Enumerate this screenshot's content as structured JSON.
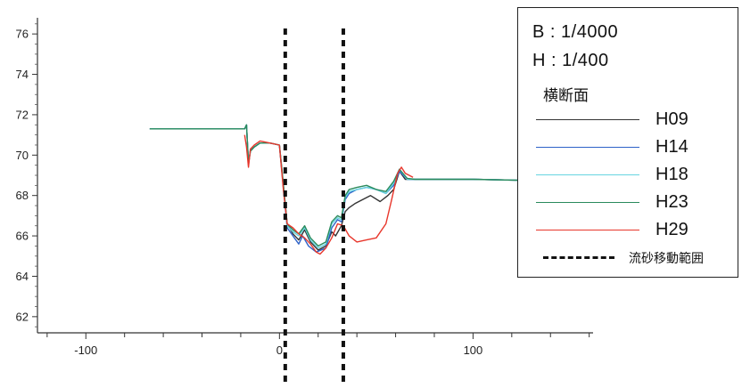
{
  "chart_data": {
    "type": "line",
    "title": "",
    "xlabel": "",
    "ylabel": "",
    "xlim": [
      -125,
      162
    ],
    "ylim": [
      61.2,
      76.8
    ],
    "x_ticks": [
      -100,
      0,
      100
    ],
    "y_ticks": [
      62,
      64,
      66,
      68,
      70,
      72,
      74,
      76
    ],
    "x_tick_labels": [
      "-100",
      "0",
      "100"
    ],
    "y_tick_labels": [
      "62",
      "64",
      "66",
      "68",
      "70",
      "72",
      "74",
      "76"
    ],
    "grid": false,
    "legend_position": "top-right",
    "legend": {
      "scale_lines": [
        "B : 1/4000",
        "H : 1/400"
      ],
      "subtitle": "横断面",
      "dashed_label": "流砂移動範囲"
    },
    "sediment_range": [
      3,
      33
    ],
    "series": [
      {
        "name": "H09",
        "color": "#333333",
        "points": [
          [
            -67,
            71.3
          ],
          [
            -18,
            71.3
          ],
          [
            -17,
            71.5
          ],
          [
            -16,
            69.6
          ],
          [
            -15,
            70.2
          ],
          [
            -13,
            70.4
          ],
          [
            -10,
            70.6
          ],
          [
            -5,
            70.6
          ],
          [
            0,
            70.5
          ],
          [
            2,
            68.5
          ],
          [
            4,
            66.6
          ],
          [
            7,
            66.1
          ],
          [
            10,
            65.8
          ],
          [
            13,
            66.3
          ],
          [
            16,
            65.7
          ],
          [
            20,
            65.3
          ],
          [
            24,
            65.5
          ],
          [
            27,
            66.2
          ],
          [
            29,
            66.0
          ],
          [
            32,
            66.5
          ],
          [
            34,
            67.2
          ],
          [
            36,
            67.4
          ],
          [
            39,
            67.6
          ],
          [
            43,
            67.8
          ],
          [
            47,
            68.0
          ],
          [
            52,
            67.7
          ],
          [
            56,
            68.0
          ],
          [
            59,
            68.3
          ],
          [
            62,
            69.2
          ],
          [
            65,
            68.8
          ],
          [
            70,
            68.8
          ],
          [
            100,
            68.8
          ],
          [
            127,
            68.75
          ],
          [
            158,
            68.75
          ]
        ]
      },
      {
        "name": "H14",
        "color": "#2e62c8",
        "points": [
          [
            -67,
            71.3
          ],
          [
            -18,
            71.3
          ],
          [
            -17,
            71.5
          ],
          [
            -16,
            69.5
          ],
          [
            -15,
            70.3
          ],
          [
            -13,
            70.4
          ],
          [
            -10,
            70.6
          ],
          [
            -5,
            70.6
          ],
          [
            0,
            70.5
          ],
          [
            2,
            68.4
          ],
          [
            4,
            66.4
          ],
          [
            7,
            66.0
          ],
          [
            10,
            65.6
          ],
          [
            12,
            66.0
          ],
          [
            15,
            65.5
          ],
          [
            19,
            65.2
          ],
          [
            24,
            65.4
          ],
          [
            27,
            66.4
          ],
          [
            30,
            66.8
          ],
          [
            32,
            66.7
          ],
          [
            34,
            67.8
          ],
          [
            36,
            68.1
          ],
          [
            40,
            68.3
          ],
          [
            45,
            68.4
          ],
          [
            50,
            68.3
          ],
          [
            55,
            68.1
          ],
          [
            59,
            68.5
          ],
          [
            62,
            69.2
          ],
          [
            66,
            68.8
          ],
          [
            70,
            68.8
          ],
          [
            100,
            68.8
          ],
          [
            127,
            68.75
          ],
          [
            158,
            68.75
          ]
        ]
      },
      {
        "name": "H18",
        "color": "#66d4e0",
        "points": [
          [
            -67,
            71.3
          ],
          [
            -18,
            71.3
          ],
          [
            -17,
            71.5
          ],
          [
            -16,
            69.6
          ],
          [
            -15,
            70.2
          ],
          [
            -13,
            70.4
          ],
          [
            -10,
            70.6
          ],
          [
            -5,
            70.6
          ],
          [
            0,
            70.5
          ],
          [
            2,
            68.5
          ],
          [
            4,
            66.5
          ],
          [
            7,
            66.2
          ],
          [
            10,
            66.0
          ],
          [
            13,
            66.4
          ],
          [
            16,
            65.8
          ],
          [
            20,
            65.4
          ],
          [
            24,
            65.6
          ],
          [
            27,
            66.6
          ],
          [
            30,
            66.9
          ],
          [
            32,
            66.8
          ],
          [
            34,
            67.9
          ],
          [
            36,
            68.2
          ],
          [
            40,
            68.3
          ],
          [
            45,
            68.4
          ],
          [
            50,
            68.3
          ],
          [
            55,
            68.1
          ],
          [
            59,
            68.6
          ],
          [
            62,
            69.3
          ],
          [
            66,
            68.8
          ],
          [
            70,
            68.8
          ],
          [
            100,
            68.8
          ],
          [
            127,
            68.75
          ],
          [
            158,
            68.75
          ]
        ]
      },
      {
        "name": "H23",
        "color": "#2a8a5c",
        "points": [
          [
            -67,
            71.3
          ],
          [
            -18,
            71.3
          ],
          [
            -17,
            71.5
          ],
          [
            -16,
            69.6
          ],
          [
            -15,
            70.2
          ],
          [
            -13,
            70.4
          ],
          [
            -10,
            70.6
          ],
          [
            -5,
            70.6
          ],
          [
            0,
            70.5
          ],
          [
            2,
            68.6
          ],
          [
            4,
            66.6
          ],
          [
            7,
            66.3
          ],
          [
            10,
            66.1
          ],
          [
            13,
            66.5
          ],
          [
            16,
            65.9
          ],
          [
            20,
            65.5
          ],
          [
            24,
            65.7
          ],
          [
            27,
            66.7
          ],
          [
            30,
            67.0
          ],
          [
            32,
            66.9
          ],
          [
            34,
            68.0
          ],
          [
            36,
            68.3
          ],
          [
            40,
            68.4
          ],
          [
            45,
            68.5
          ],
          [
            50,
            68.3
          ],
          [
            55,
            68.2
          ],
          [
            59,
            68.7
          ],
          [
            62,
            69.3
          ],
          [
            66,
            68.85
          ],
          [
            70,
            68.8
          ],
          [
            100,
            68.8
          ],
          [
            127,
            68.75
          ],
          [
            158,
            68.75
          ]
        ]
      },
      {
        "name": "H29",
        "color": "#e8372c",
        "points": [
          [
            -18,
            71.0
          ],
          [
            -17,
            70.4
          ],
          [
            -16,
            69.4
          ],
          [
            -15,
            70.3
          ],
          [
            -13,
            70.5
          ],
          [
            -10,
            70.7
          ],
          [
            -5,
            70.6
          ],
          [
            0,
            70.5
          ],
          [
            2,
            68.3
          ],
          [
            4,
            66.6
          ],
          [
            7,
            66.4
          ],
          [
            10,
            66.1
          ],
          [
            13,
            65.9
          ],
          [
            16,
            65.6
          ],
          [
            19,
            65.2
          ],
          [
            21,
            65.1
          ],
          [
            24,
            65.4
          ],
          [
            27,
            65.9
          ],
          [
            30,
            66.6
          ],
          [
            33,
            66.5
          ],
          [
            36,
            66.0
          ],
          [
            40,
            65.7
          ],
          [
            45,
            65.8
          ],
          [
            50,
            65.9
          ],
          [
            55,
            66.6
          ],
          [
            58,
            67.8
          ],
          [
            61,
            69.1
          ],
          [
            63,
            69.4
          ],
          [
            65,
            69.1
          ],
          [
            69,
            68.9
          ]
        ]
      }
    ]
  }
}
